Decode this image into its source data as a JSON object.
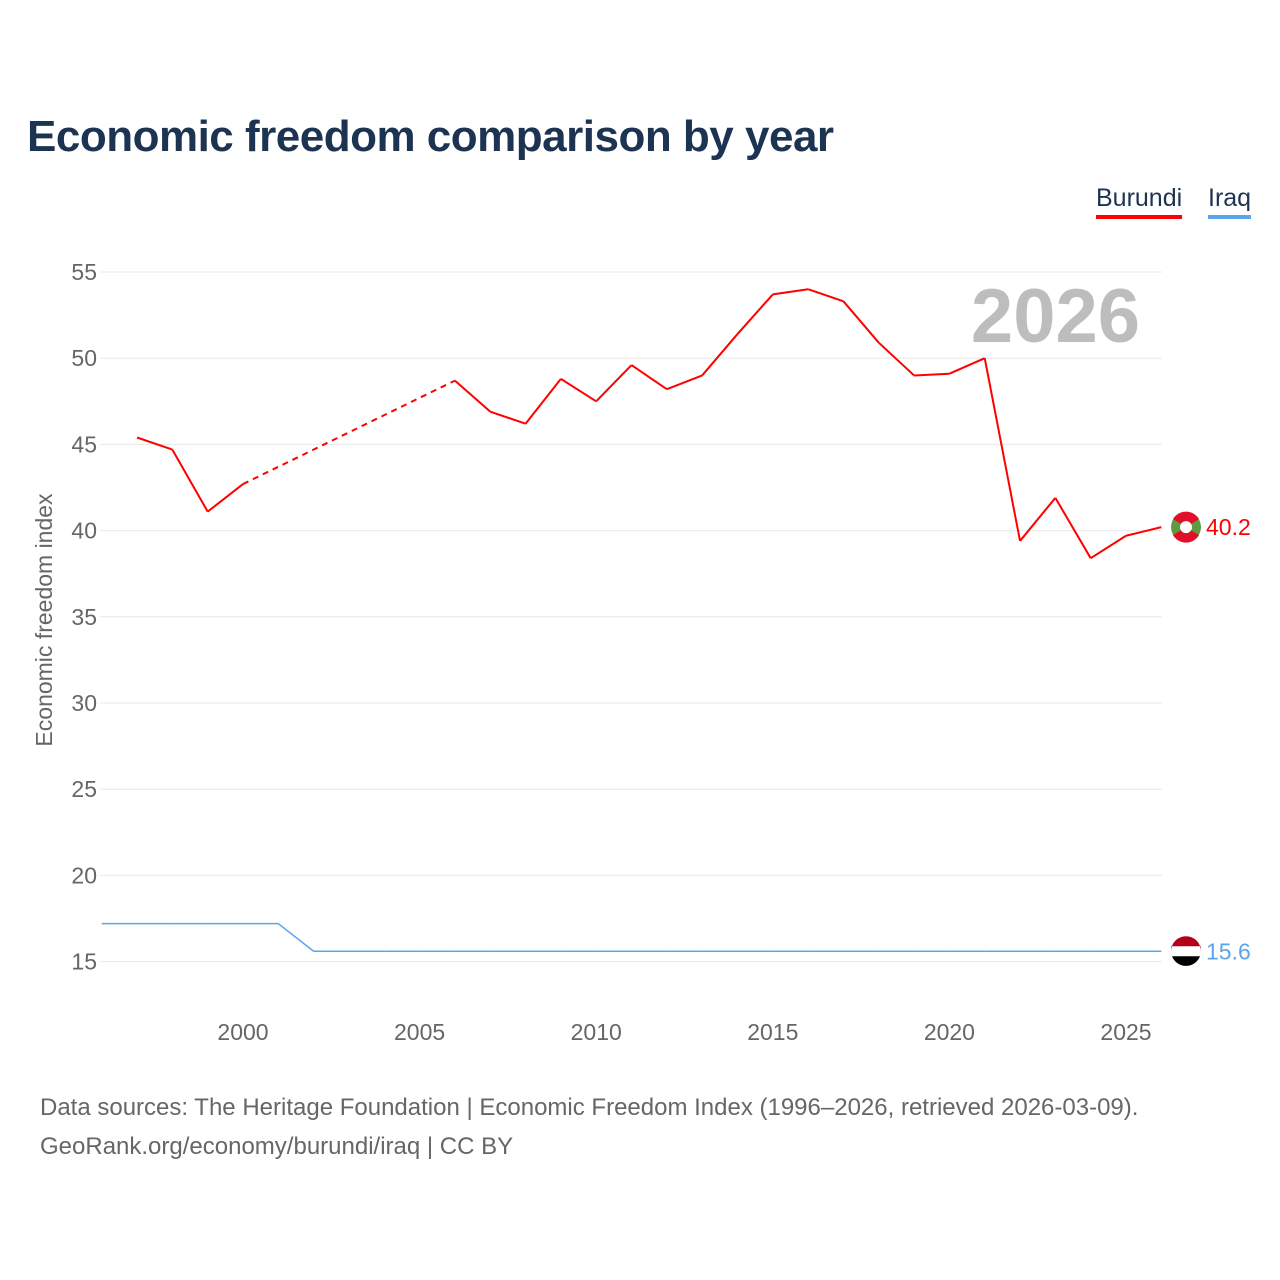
{
  "title": "Economic freedom comparison by year",
  "footer": {
    "line1": "Data sources: The Heritage Foundation | Economic Freedom Index (1996–2026, retrieved 2026-03-09).",
    "line2": "GeoRank.org/economy/burundi/iraq | CC BY"
  },
  "chart_data": {
    "type": "line",
    "title": "Economic freedom comparison by year",
    "ylabel": "Economic freedom index",
    "xlabel": "",
    "ylim": [
      12,
      57
    ],
    "xlim": [
      1996,
      2026
    ],
    "yticks": [
      15,
      20,
      25,
      30,
      35,
      40,
      45,
      50,
      55
    ],
    "xticks": [
      2000,
      2005,
      2010,
      2015,
      2020,
      2025
    ],
    "year_label": "2026",
    "legend_position": "top-right",
    "grid": true,
    "series": [
      {
        "name": "Burundi",
        "color": "#ff0000",
        "end_label": "40.2",
        "x": [
          1997,
          1998,
          1999,
          2000,
          2006,
          2007,
          2008,
          2009,
          2010,
          2011,
          2012,
          2013,
          2014,
          2015,
          2016,
          2017,
          2018,
          2019,
          2020,
          2021,
          2022,
          2023,
          2024,
          2025,
          2026
        ],
        "y": [
          45.4,
          44.7,
          41.1,
          42.7,
          48.7,
          46.9,
          46.2,
          48.8,
          47.5,
          49.6,
          48.2,
          49.0,
          51.4,
          53.7,
          54.0,
          53.3,
          50.9,
          49.0,
          49.1,
          50.0,
          39.4,
          41.9,
          38.4,
          39.7,
          40.2
        ],
        "dashed_gap_after_year": 2000
      },
      {
        "name": "Iraq",
        "color": "#5aa5ec",
        "end_label": "15.6",
        "x": [
          1996,
          1997,
          1998,
          1999,
          2000,
          2001,
          2002,
          2003,
          2004,
          2005,
          2006,
          2007,
          2008,
          2009,
          2010,
          2011,
          2012,
          2013,
          2014,
          2015,
          2016,
          2017,
          2018,
          2019,
          2020,
          2021,
          2022,
          2023,
          2024,
          2025,
          2026
        ],
        "y": [
          17.2,
          17.2,
          17.2,
          17.2,
          17.2,
          17.2,
          15.6,
          15.6,
          15.6,
          15.6,
          15.6,
          15.6,
          15.6,
          15.6,
          15.6,
          15.6,
          15.6,
          15.6,
          15.6,
          15.6,
          15.6,
          15.6,
          15.6,
          15.6,
          15.6,
          15.6,
          15.6,
          15.6,
          15.6,
          15.6,
          15.6
        ]
      }
    ]
  }
}
